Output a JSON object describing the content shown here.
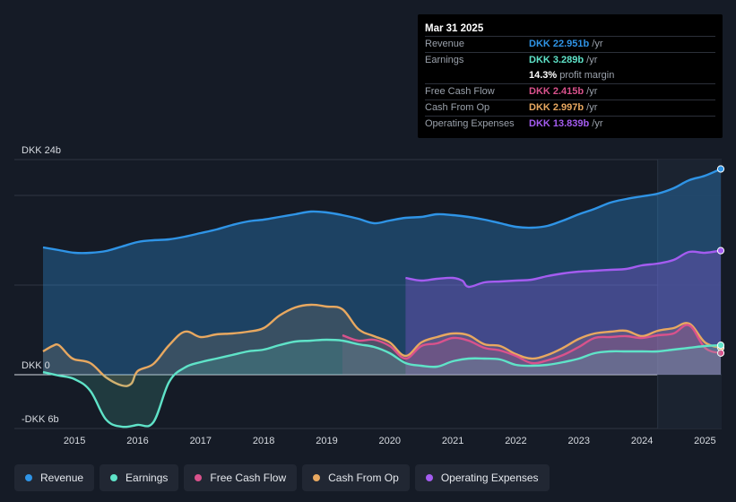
{
  "colors": {
    "revenue": "#2f94e6",
    "earnings": "#5fe3c8",
    "fcf": "#d9528c",
    "cfo": "#e8a860",
    "opex": "#a45cf0",
    "grid": "#2f3643",
    "text": "#d7dbe1"
  },
  "tooltip": {
    "date": "Mar 31 2025",
    "rows": [
      {
        "label": "Revenue",
        "value": "DKK 22.951b",
        "unit": "/yr",
        "color": "#2f94e6"
      },
      {
        "label": "Earnings",
        "value": "DKK 3.289b",
        "unit": "/yr",
        "color": "#5fe3c8"
      },
      {
        "label": "",
        "value": "14.3%",
        "unit": "profit margin",
        "color": "#ffffff"
      },
      {
        "label": "Free Cash Flow",
        "value": "DKK 2.415b",
        "unit": "/yr",
        "color": "#d9528c"
      },
      {
        "label": "Cash From Op",
        "value": "DKK 2.997b",
        "unit": "/yr",
        "color": "#e8a860"
      },
      {
        "label": "Operating Expenses",
        "value": "DKK 13.839b",
        "unit": "/yr",
        "color": "#a45cf0"
      }
    ]
  },
  "legend": [
    {
      "label": "Revenue",
      "color": "#2f94e6"
    },
    {
      "label": "Earnings",
      "color": "#5fe3c8"
    },
    {
      "label": "Free Cash Flow",
      "color": "#d9528c"
    },
    {
      "label": "Cash From Op",
      "color": "#e8a860"
    },
    {
      "label": "Operating Expenses",
      "color": "#a45cf0"
    }
  ],
  "chart_data": {
    "type": "area",
    "title": "",
    "xlabel": "",
    "ylabel": "",
    "xlim": [
      2014.5,
      2025.25
    ],
    "ylim": [
      -6,
      24
    ],
    "y_labels": [
      {
        "value": 24,
        "text": "DKK 24b"
      },
      {
        "value": 0,
        "text": "DKK 0"
      },
      {
        "value": -6,
        "text": "-DKK 6b"
      }
    ],
    "x_ticks": [
      2015,
      2016,
      2017,
      2018,
      2019,
      2020,
      2021,
      2022,
      2023,
      2024,
      2025
    ],
    "highlight_from": 2024.25,
    "series": [
      {
        "name": "Revenue",
        "key": "revenue",
        "values": [
          [
            2014.5,
            14.2
          ],
          [
            2014.75,
            13.9
          ],
          [
            2015.0,
            13.6
          ],
          [
            2015.25,
            13.6
          ],
          [
            2015.5,
            13.8
          ],
          [
            2015.75,
            14.3
          ],
          [
            2016.0,
            14.8
          ],
          [
            2016.25,
            15.0
          ],
          [
            2016.5,
            15.1
          ],
          [
            2016.75,
            15.4
          ],
          [
            2017.0,
            15.8
          ],
          [
            2017.25,
            16.2
          ],
          [
            2017.5,
            16.7
          ],
          [
            2017.75,
            17.1
          ],
          [
            2018.0,
            17.3
          ],
          [
            2018.25,
            17.6
          ],
          [
            2018.5,
            17.9
          ],
          [
            2018.75,
            18.2
          ],
          [
            2019.0,
            18.1
          ],
          [
            2019.25,
            17.8
          ],
          [
            2019.5,
            17.4
          ],
          [
            2019.75,
            16.9
          ],
          [
            2020.0,
            17.2
          ],
          [
            2020.25,
            17.5
          ],
          [
            2020.5,
            17.6
          ],
          [
            2020.75,
            17.9
          ],
          [
            2021.0,
            17.8
          ],
          [
            2021.25,
            17.6
          ],
          [
            2021.5,
            17.3
          ],
          [
            2021.75,
            16.9
          ],
          [
            2022.0,
            16.5
          ],
          [
            2022.25,
            16.4
          ],
          [
            2022.5,
            16.6
          ],
          [
            2022.75,
            17.2
          ],
          [
            2023.0,
            17.9
          ],
          [
            2023.25,
            18.5
          ],
          [
            2023.5,
            19.2
          ],
          [
            2023.75,
            19.6
          ],
          [
            2024.0,
            19.9
          ],
          [
            2024.25,
            20.2
          ],
          [
            2024.5,
            20.8
          ],
          [
            2024.75,
            21.7
          ],
          [
            2025.0,
            22.2
          ],
          [
            2025.25,
            22.951
          ]
        ]
      },
      {
        "name": "Operating Expenses",
        "key": "opex",
        "values": [
          [
            2020.25,
            10.8
          ],
          [
            2020.5,
            10.5
          ],
          [
            2020.75,
            10.7
          ],
          [
            2021.0,
            10.8
          ],
          [
            2021.15,
            10.5
          ],
          [
            2021.25,
            9.8
          ],
          [
            2021.5,
            10.3
          ],
          [
            2021.75,
            10.4
          ],
          [
            2022.0,
            10.5
          ],
          [
            2022.25,
            10.6
          ],
          [
            2022.5,
            11.0
          ],
          [
            2022.75,
            11.3
          ],
          [
            2023.0,
            11.5
          ],
          [
            2023.25,
            11.6
          ],
          [
            2023.5,
            11.7
          ],
          [
            2023.75,
            11.8
          ],
          [
            2024.0,
            12.2
          ],
          [
            2024.25,
            12.4
          ],
          [
            2024.5,
            12.8
          ],
          [
            2024.75,
            13.7
          ],
          [
            2025.0,
            13.6
          ],
          [
            2025.25,
            13.839
          ]
        ]
      },
      {
        "name": "Cash From Op",
        "key": "cfo",
        "values": [
          [
            2014.5,
            2.6
          ],
          [
            2014.65,
            3.2
          ],
          [
            2014.75,
            3.3
          ],
          [
            2014.9,
            2.2
          ],
          [
            2015.0,
            1.7
          ],
          [
            2015.25,
            1.3
          ],
          [
            2015.5,
            -0.3
          ],
          [
            2015.75,
            -1.2
          ],
          [
            2015.9,
            -1.0
          ],
          [
            2016.0,
            0.4
          ],
          [
            2016.25,
            1.2
          ],
          [
            2016.5,
            3.3
          ],
          [
            2016.75,
            4.8
          ],
          [
            2017.0,
            4.2
          ],
          [
            2017.25,
            4.5
          ],
          [
            2017.5,
            4.6
          ],
          [
            2017.75,
            4.8
          ],
          [
            2018.0,
            5.2
          ],
          [
            2018.25,
            6.6
          ],
          [
            2018.5,
            7.5
          ],
          [
            2018.75,
            7.8
          ],
          [
            2019.0,
            7.6
          ],
          [
            2019.25,
            7.3
          ],
          [
            2019.5,
            5.1
          ],
          [
            2019.75,
            4.3
          ],
          [
            2020.0,
            3.6
          ],
          [
            2020.25,
            2.1
          ],
          [
            2020.5,
            3.6
          ],
          [
            2020.75,
            4.2
          ],
          [
            2021.0,
            4.6
          ],
          [
            2021.25,
            4.4
          ],
          [
            2021.5,
            3.4
          ],
          [
            2021.75,
            3.2
          ],
          [
            2022.0,
            2.3
          ],
          [
            2022.25,
            1.8
          ],
          [
            2022.5,
            2.2
          ],
          [
            2022.75,
            3.0
          ],
          [
            2023.0,
            4.0
          ],
          [
            2023.25,
            4.6
          ],
          [
            2023.5,
            4.8
          ],
          [
            2023.75,
            4.9
          ],
          [
            2024.0,
            4.3
          ],
          [
            2024.25,
            4.9
          ],
          [
            2024.5,
            5.2
          ],
          [
            2024.75,
            5.7
          ],
          [
            2025.0,
            3.6
          ],
          [
            2025.25,
            2.997
          ]
        ]
      },
      {
        "name": "Free Cash Flow",
        "key": "fcf",
        "values": [
          [
            2019.25,
            4.4
          ],
          [
            2019.5,
            3.8
          ],
          [
            2019.75,
            3.9
          ],
          [
            2020.0,
            3.2
          ],
          [
            2020.25,
            1.8
          ],
          [
            2020.5,
            3.2
          ],
          [
            2020.75,
            3.5
          ],
          [
            2021.0,
            4.1
          ],
          [
            2021.25,
            3.8
          ],
          [
            2021.5,
            3.0
          ],
          [
            2021.75,
            2.7
          ],
          [
            2022.0,
            2.1
          ],
          [
            2022.25,
            1.3
          ],
          [
            2022.5,
            1.6
          ],
          [
            2022.75,
            2.2
          ],
          [
            2023.0,
            3.1
          ],
          [
            2023.25,
            4.1
          ],
          [
            2023.5,
            4.2
          ],
          [
            2023.75,
            4.3
          ],
          [
            2024.0,
            4.1
          ],
          [
            2024.25,
            4.4
          ],
          [
            2024.5,
            4.6
          ],
          [
            2024.75,
            5.5
          ],
          [
            2025.0,
            3.0
          ],
          [
            2025.25,
            2.415
          ]
        ]
      },
      {
        "name": "Earnings",
        "key": "earnings",
        "values": [
          [
            2014.5,
            0.3
          ],
          [
            2014.75,
            -0.1
          ],
          [
            2015.0,
            -0.5
          ],
          [
            2015.25,
            -1.8
          ],
          [
            2015.5,
            -5.0
          ],
          [
            2015.75,
            -5.8
          ],
          [
            2016.0,
            -5.6
          ],
          [
            2016.25,
            -5.3
          ],
          [
            2016.5,
            -0.8
          ],
          [
            2016.75,
            0.8
          ],
          [
            2017.0,
            1.4
          ],
          [
            2017.25,
            1.8
          ],
          [
            2017.5,
            2.2
          ],
          [
            2017.75,
            2.6
          ],
          [
            2018.0,
            2.8
          ],
          [
            2018.25,
            3.3
          ],
          [
            2018.5,
            3.7
          ],
          [
            2018.75,
            3.8
          ],
          [
            2019.0,
            3.9
          ],
          [
            2019.25,
            3.8
          ],
          [
            2019.5,
            3.4
          ],
          [
            2019.75,
            3.1
          ],
          [
            2020.0,
            2.4
          ],
          [
            2020.25,
            1.3
          ],
          [
            2020.5,
            1.0
          ],
          [
            2020.75,
            0.9
          ],
          [
            2021.0,
            1.5
          ],
          [
            2021.25,
            1.8
          ],
          [
            2021.5,
            1.8
          ],
          [
            2021.75,
            1.7
          ],
          [
            2022.0,
            1.1
          ],
          [
            2022.25,
            1.0
          ],
          [
            2022.5,
            1.1
          ],
          [
            2022.75,
            1.4
          ],
          [
            2023.0,
            1.8
          ],
          [
            2023.25,
            2.4
          ],
          [
            2023.5,
            2.6
          ],
          [
            2023.75,
            2.6
          ],
          [
            2024.0,
            2.6
          ],
          [
            2024.25,
            2.6
          ],
          [
            2024.5,
            2.8
          ],
          [
            2024.75,
            3.0
          ],
          [
            2025.0,
            3.2
          ],
          [
            2025.25,
            3.289
          ]
        ]
      }
    ]
  }
}
